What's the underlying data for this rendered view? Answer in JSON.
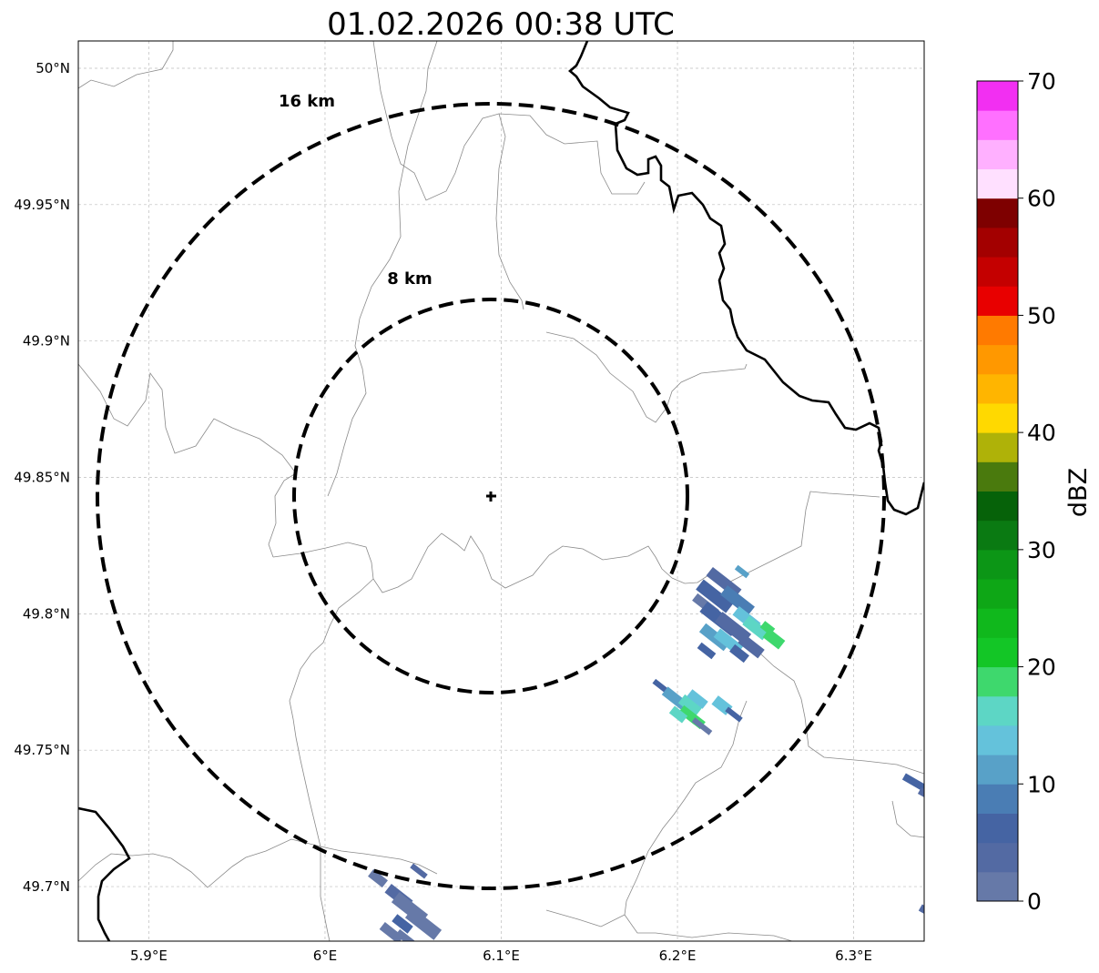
{
  "title": "01.02.2026 00:38 UTC",
  "map": {
    "lon_range": [
      5.86,
      6.34
    ],
    "lat_range": [
      49.68,
      50.01
    ],
    "grid": true,
    "x_ticks": [
      {
        "value": 5.9,
        "label": "5.9°E"
      },
      {
        "value": 6.0,
        "label": "6°E"
      },
      {
        "value": 6.1,
        "label": "6.1°E"
      },
      {
        "value": 6.2,
        "label": "6.2°E"
      },
      {
        "value": 6.3,
        "label": "6.3°E"
      }
    ],
    "y_ticks": [
      {
        "value": 49.7,
        "label": "49.7°N"
      },
      {
        "value": 49.75,
        "label": "49.75°N"
      },
      {
        "value": 49.8,
        "label": "49.8°N"
      },
      {
        "value": 49.85,
        "label": "49.85°N"
      },
      {
        "value": 49.9,
        "label": "49.9°N"
      },
      {
        "value": 49.95,
        "label": "49.95°N"
      },
      {
        "value": 50.0,
        "label": "50°N"
      }
    ],
    "radar_site": {
      "lon": 6.095,
      "lat": 49.843
    },
    "range_rings": [
      {
        "label": "8 km"
      },
      {
        "label": "16 km"
      }
    ]
  },
  "colorbar": {
    "label": "dBZ",
    "ticks": [
      "0",
      "10",
      "20",
      "30",
      "40",
      "50",
      "60",
      "70"
    ],
    "colors": [
      "#6679a8",
      "#536aa3",
      "#4564a3",
      "#4a7db4",
      "#58a1c8",
      "#64c2db",
      "#5dd6c5",
      "#3ed86d",
      "#13c626",
      "#10b81c",
      "#0ea716",
      "#0c9616",
      "#0a7a12",
      "#066209",
      "#4a7a0d",
      "#afb208",
      "#ffd900",
      "#ffb500",
      "#ff9800",
      "#ff7a00",
      "#e80000",
      "#c40000",
      "#a30000",
      "#7e0000",
      "#ffe0ff",
      "#ffb0ff",
      "#ff70ff",
      "#f22ff2"
    ]
  },
  "colors": {
    "ring": "#000000",
    "border": "#000000",
    "boundary": "#8a8a8a",
    "grid": "#bdbdbd"
  }
}
